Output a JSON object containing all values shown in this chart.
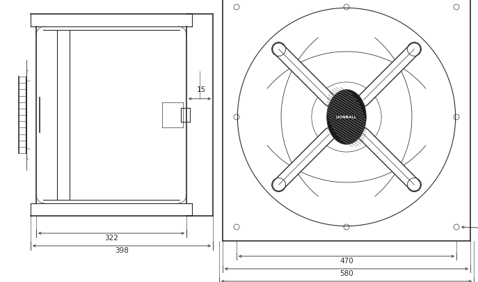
{
  "bg_color": "#ffffff",
  "line_color": "#2a2a2a",
  "fig_width": 6.87,
  "fig_height": 4.05,
  "dpi": 100
}
